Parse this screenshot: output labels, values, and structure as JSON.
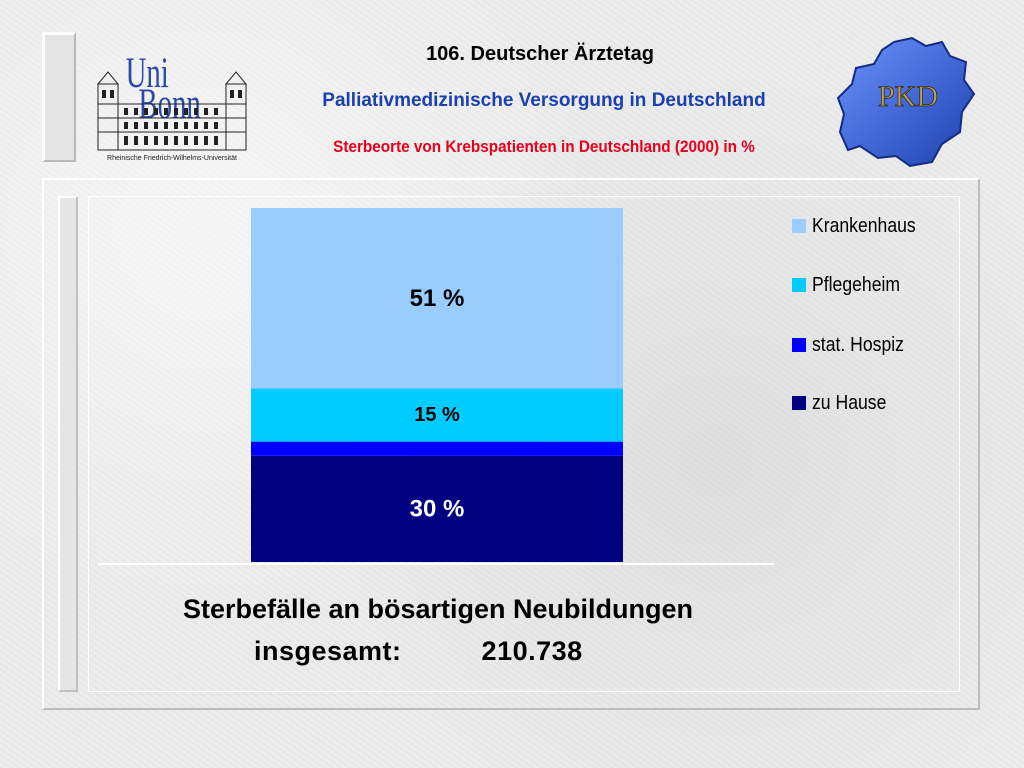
{
  "header": {
    "title": "106. Deutscher Ärztetag",
    "subtitle": "Palliativmedizinische Versorgung in Deutschland",
    "chart_title": "Sterbeorte von Krebspatienten in Deutschland (2000) in %"
  },
  "logos": {
    "uni_bonn": {
      "line1": "Uni",
      "line2": "Bonn",
      "caption": "Rheinische Friedrich-Wilhelms-Universität",
      "color": "#2a49a8"
    },
    "pkd": {
      "text": "PKD",
      "color": "#2f5ccf"
    }
  },
  "colors": {
    "krankenhaus": "#99ccff",
    "pflegeheim": "#00ccff",
    "hospiz": "#0000ff",
    "zu_hause": "#000080",
    "subtitle": "#1a3fb0",
    "chart_title": "#e8001c"
  },
  "chart_data": {
    "type": "bar",
    "stacked": true,
    "categories": [
      ""
    ],
    "series": [
      {
        "name": "zu Hause",
        "values": [
          30
        ],
        "label": "30 %",
        "color": "#000080"
      },
      {
        "name": "stat. Hospiz",
        "values": [
          4
        ],
        "label": "",
        "color": "#0000ff"
      },
      {
        "name": "Pflegeheim",
        "values": [
          15
        ],
        "label": "15 %",
        "color": "#00ccff"
      },
      {
        "name": "Krankenhaus",
        "values": [
          51
        ],
        "label": "51 %",
        "color": "#99ccff"
      }
    ],
    "title": "",
    "xlabel": "",
    "ylabel": "",
    "ylim": [
      0,
      100
    ],
    "grid": false,
    "legend_position": "right",
    "legend_order": [
      "Krankenhaus",
      "Pflegeheim",
      "stat. Hospiz",
      "zu Hause"
    ]
  },
  "caption": {
    "line1": "Sterbefälle an bösartigen Neubildungen",
    "line2_label": "insgesamt:",
    "line2_value": "210.738"
  }
}
